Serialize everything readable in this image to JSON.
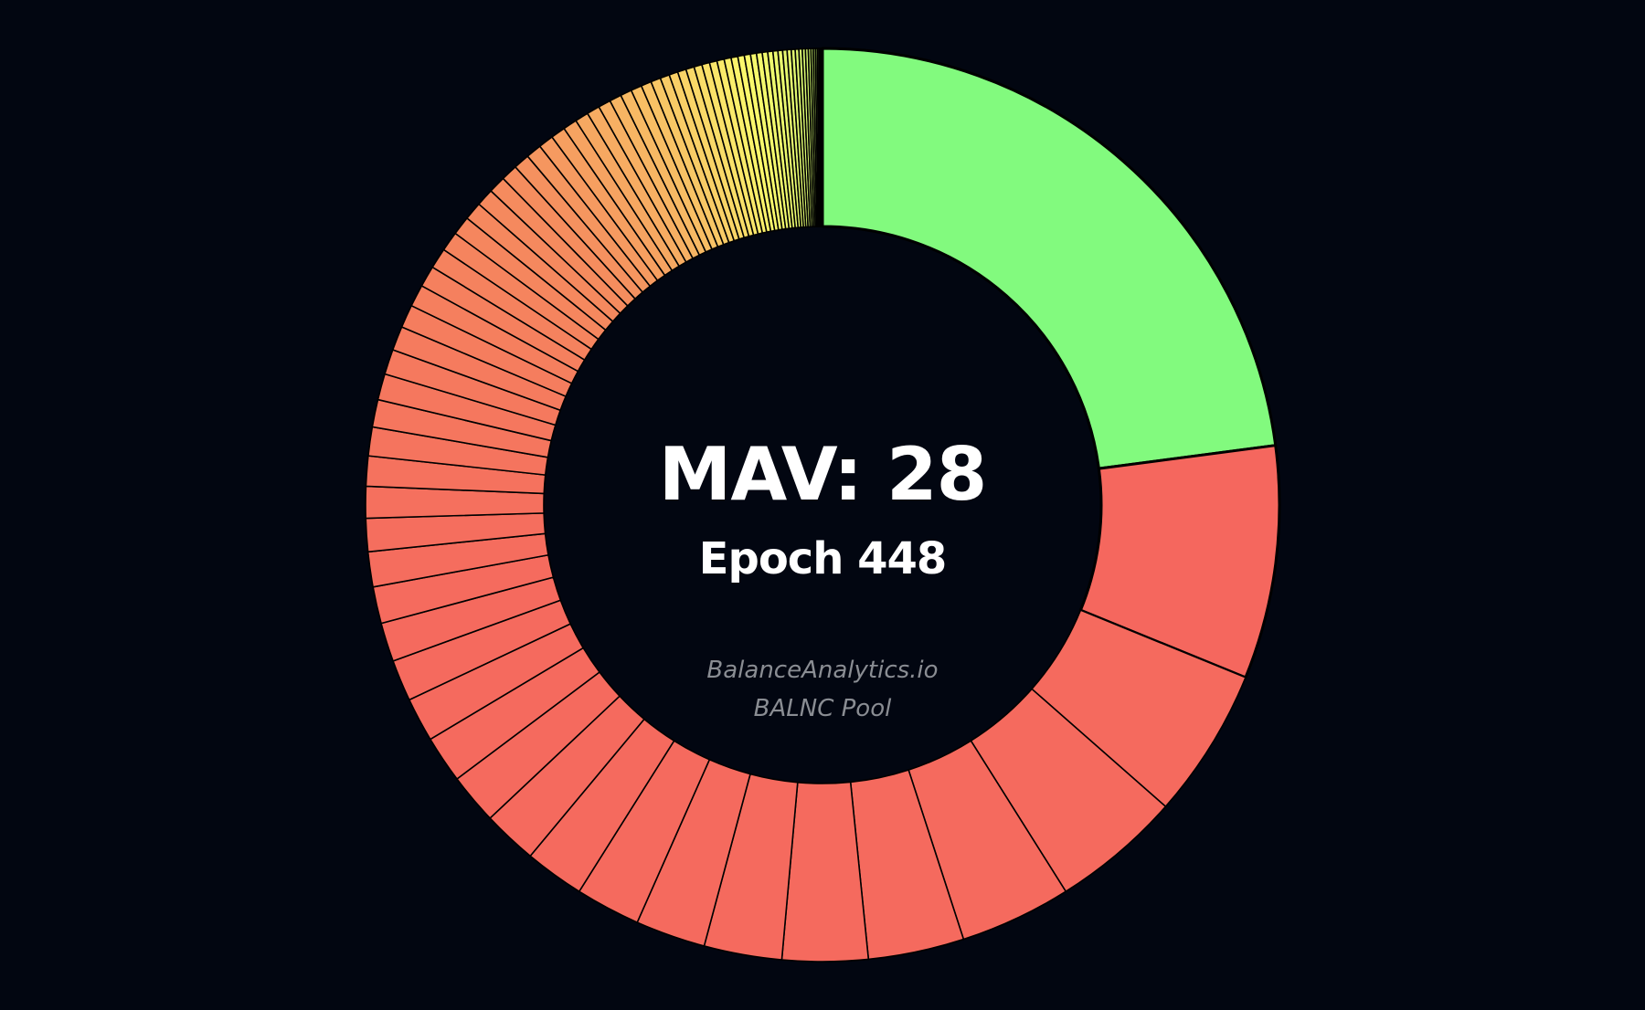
{
  "chart_data": {
    "type": "pie",
    "variant": "donut",
    "title": "MAV: 28",
    "subtitle": "Epoch 448",
    "watermark": [
      "BalanceAnalytics.io",
      "BALNC Pool"
    ],
    "start_angle": "top",
    "direction": "clockwise",
    "slice_stroke": "#000000",
    "colors": {
      "largest": "#82fa7e",
      "second": "#f5675e",
      "red": "#f56a5e",
      "orange": "#f58d5e",
      "yellow": "#fbf96c",
      "light_green": "#d8f871",
      "dark_green": "#8ecb4e"
    },
    "values": [
      25.0,
      9.0,
      5.8,
      5.0,
      4.3,
      3.7,
      3.3,
      3.0,
      2.7,
      2.5,
      2.3,
      2.1,
      1.95,
      1.82,
      1.7,
      1.6,
      1.5,
      1.42,
      1.35,
      1.28,
      1.22,
      1.16,
      1.11,
      1.06,
      1.01,
      0.97,
      0.93,
      0.89,
      0.85,
      0.82,
      0.79,
      0.76,
      0.73,
      0.7,
      0.68,
      0.66,
      0.64,
      0.62,
      0.6,
      0.58,
      0.56,
      0.54,
      0.52,
      0.5,
      0.48,
      0.46,
      0.44,
      0.42,
      0.4,
      0.38,
      0.36,
      0.34,
      0.33,
      0.32,
      0.31,
      0.3,
      0.29,
      0.28,
      0.27,
      0.26,
      0.25,
      0.24,
      0.23,
      0.22,
      0.21,
      0.2,
      0.19,
      0.18,
      0.17,
      0.16,
      0.15,
      0.14,
      0.13,
      0.12,
      0.11,
      0.1,
      0.09,
      0.08,
      0.07,
      0.06,
      0.05,
      0.04,
      0.03,
      0.02
    ]
  }
}
